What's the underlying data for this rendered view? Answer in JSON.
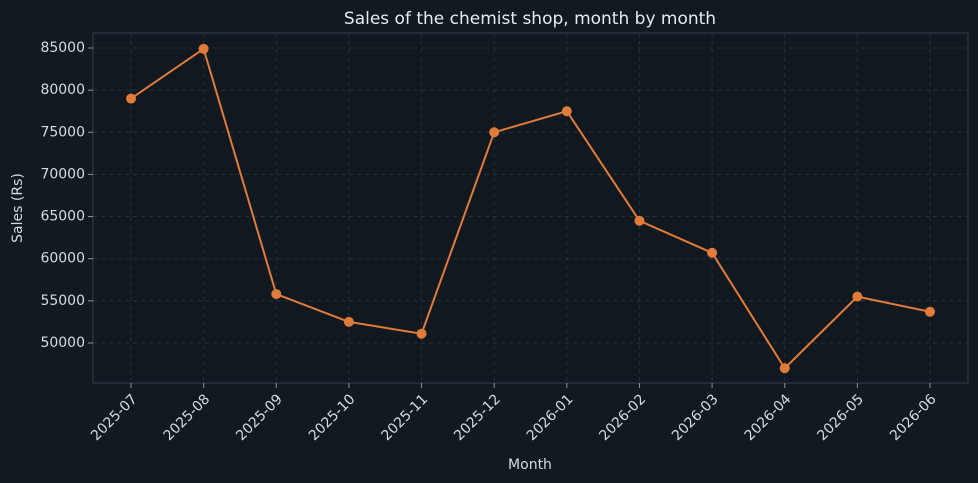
{
  "chart_data": {
    "type": "line",
    "title": "Sales of the chemist shop, month by month",
    "x_label": "Month",
    "y_label": "Sales (Rs)",
    "categories": [
      "2025-07",
      "2025-08",
      "2025-09",
      "2025-10",
      "2025-11",
      "2025-12",
      "2026-01",
      "2026-02",
      "2026-03",
      "2026-04",
      "2026-05",
      "2026-06"
    ],
    "series": [
      {
        "name": "Sales",
        "color": "#e07b39",
        "values": [
          79000,
          84900,
          55800,
          52500,
          51100,
          75000,
          77500,
          64500,
          60700,
          47000,
          55500,
          53700
        ]
      }
    ],
    "ylim": [
      45250,
      86780
    ],
    "yticks": [
      50000,
      55000,
      60000,
      65000,
      70000,
      75000,
      80000,
      85000
    ],
    "grid": true
  }
}
